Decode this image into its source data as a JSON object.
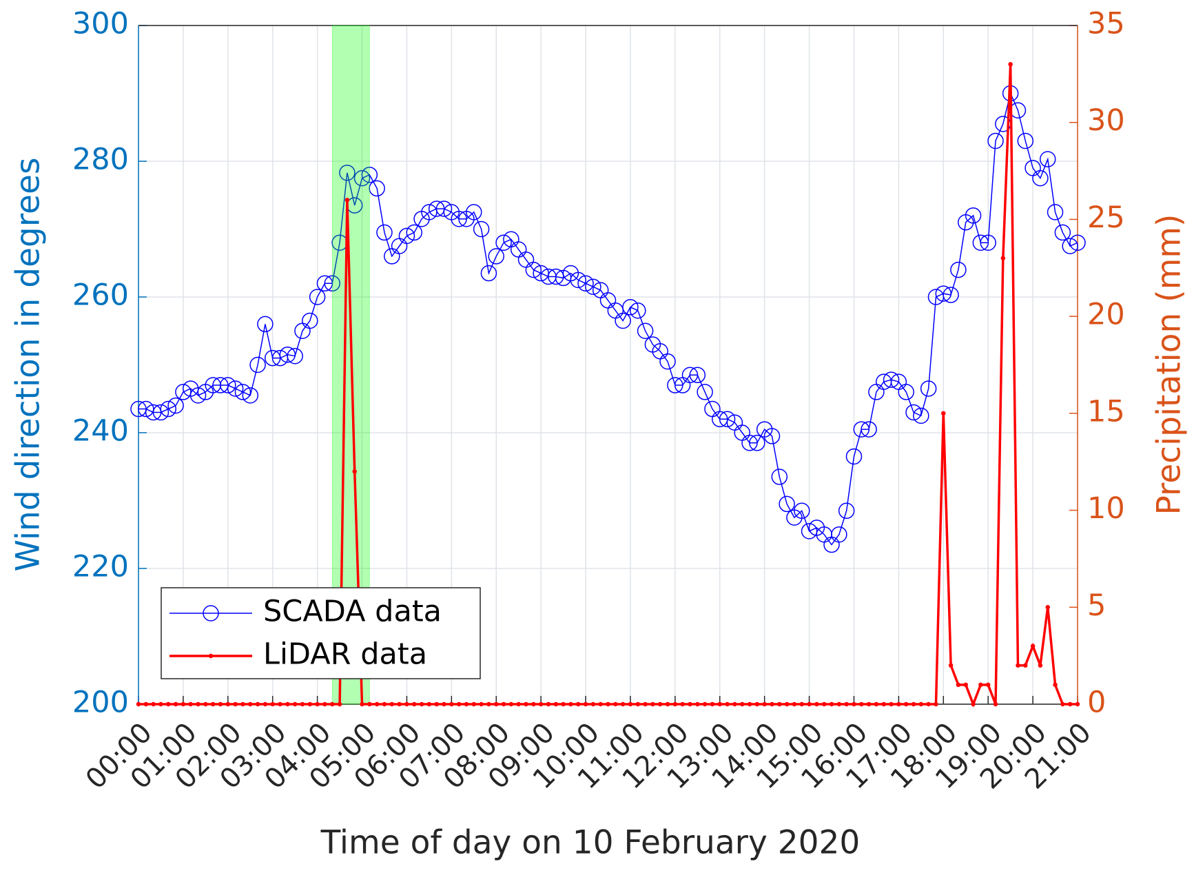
{
  "chart_data": {
    "type": "line",
    "xlabel": "Time of day on 10 February 2020",
    "ylabel": "Wind direction in degrees",
    "y2label": "Precipitation (mm)",
    "xlim": [
      0,
      1260
    ],
    "xticks": [
      {
        "value": 0,
        "label": "00:00"
      },
      {
        "value": 60,
        "label": "01:00"
      },
      {
        "value": 120,
        "label": "02:00"
      },
      {
        "value": 180,
        "label": "03:00"
      },
      {
        "value": 240,
        "label": "04:00"
      },
      {
        "value": 300,
        "label": "05:00"
      },
      {
        "value": 360,
        "label": "06:00"
      },
      {
        "value": 420,
        "label": "07:00"
      },
      {
        "value": 480,
        "label": "08:00"
      },
      {
        "value": 540,
        "label": "09:00"
      },
      {
        "value": 600,
        "label": "10:00"
      },
      {
        "value": 660,
        "label": "11:00"
      },
      {
        "value": 720,
        "label": "12:00"
      },
      {
        "value": 780,
        "label": "13:00"
      },
      {
        "value": 840,
        "label": "14:00"
      },
      {
        "value": 900,
        "label": "15:00"
      },
      {
        "value": 960,
        "label": "16:00"
      },
      {
        "value": 1020,
        "label": "17:00"
      },
      {
        "value": 1080,
        "label": "18:00"
      },
      {
        "value": 1140,
        "label": "19:00"
      },
      {
        "value": 1200,
        "label": "20:00"
      },
      {
        "value": 1260,
        "label": "21:00"
      }
    ],
    "ylim": [
      200,
      300
    ],
    "yticks": [
      200,
      220,
      240,
      260,
      280,
      300
    ],
    "y2lim": [
      0,
      35
    ],
    "y2ticks": [
      0,
      5,
      10,
      15,
      20,
      25,
      30,
      35
    ],
    "grid": true,
    "legend": "lower left",
    "ycolor": "#0072bd",
    "y2color": "#d95319",
    "shaded_span": [
      260,
      310
    ],
    "shaded_color": "#00ff00",
    "series": [
      {
        "name": "SCADA data",
        "color": "#0000ff",
        "marker": "circle",
        "x": [
          0,
          10,
          20,
          30,
          40,
          50,
          60,
          70,
          80,
          90,
          100,
          110,
          120,
          130,
          140,
          150,
          160,
          170,
          180,
          190,
          200,
          210,
          220,
          230,
          240,
          250,
          260,
          270,
          280,
          290,
          300,
          310,
          320,
          330,
          340,
          350,
          360,
          370,
          380,
          390,
          400,
          410,
          420,
          430,
          440,
          450,
          460,
          470,
          480,
          490,
          500,
          510,
          520,
          530,
          540,
          550,
          560,
          570,
          580,
          590,
          600,
          610,
          620,
          630,
          640,
          650,
          660,
          670,
          680,
          690,
          700,
          710,
          720,
          730,
          740,
          750,
          760,
          770,
          780,
          790,
          800,
          810,
          820,
          830,
          840,
          850,
          860,
          870,
          880,
          890,
          900,
          910,
          920,
          930,
          940,
          950,
          960,
          970,
          980,
          990,
          1000,
          1010,
          1020,
          1030,
          1040,
          1050,
          1060,
          1070,
          1080,
          1090,
          1100,
          1110,
          1120,
          1130,
          1140,
          1150,
          1160,
          1170,
          1180,
          1190,
          1200,
          1210,
          1220,
          1230,
          1240,
          1250,
          1260
        ],
        "values": [
          243.5,
          243.5,
          243,
          243,
          243.5,
          244,
          246,
          246.5,
          245.5,
          246,
          247,
          247,
          247,
          246.5,
          246,
          245.5,
          250,
          256,
          251,
          251,
          251.5,
          251.3,
          255,
          256.5,
          260,
          262,
          262,
          268,
          278.3,
          273.5,
          277.5,
          278,
          276,
          269.5,
          266,
          267.5,
          269,
          269.5,
          271.5,
          272.5,
          273,
          273,
          272.5,
          271.5,
          271.5,
          272.5,
          270,
          263.5,
          266,
          268,
          268.5,
          267,
          265.5,
          264,
          263.5,
          263,
          263,
          262.8,
          263.5,
          262.5,
          262,
          261.5,
          261,
          259.5,
          258,
          256.5,
          258.5,
          258,
          255,
          253,
          252,
          250.5,
          247,
          247,
          248.5,
          248.5,
          246,
          243.5,
          242,
          242,
          241.5,
          240,
          238.5,
          238.5,
          240.5,
          239.5,
          233.5,
          229.5,
          227.5,
          228.5,
          225.5,
          226,
          225,
          223.5,
          225,
          228.5,
          236.5,
          240.5,
          240.5,
          246,
          247.5,
          247.8,
          247.5,
          246,
          243,
          242.5,
          246.5,
          260,
          260.5,
          260.3,
          264,
          271,
          272,
          268,
          268,
          283,
          285.5,
          290,
          287.5,
          283,
          279,
          277.5,
          280.3,
          272.5,
          269.5,
          267.5,
          268
        ]
      },
      {
        "name": "LiDAR data",
        "color": "#ff0000",
        "marker": "dot",
        "axis": "y2",
        "x": [
          0,
          10,
          20,
          30,
          40,
          50,
          60,
          70,
          80,
          90,
          100,
          110,
          120,
          130,
          140,
          150,
          160,
          170,
          180,
          190,
          200,
          210,
          220,
          230,
          240,
          250,
          260,
          270,
          280,
          290,
          300,
          310,
          320,
          330,
          340,
          350,
          360,
          370,
          380,
          390,
          400,
          410,
          420,
          430,
          440,
          450,
          460,
          470,
          480,
          490,
          500,
          510,
          520,
          530,
          540,
          550,
          560,
          570,
          580,
          590,
          600,
          610,
          620,
          630,
          640,
          650,
          660,
          670,
          680,
          690,
          700,
          710,
          720,
          730,
          740,
          750,
          760,
          770,
          780,
          790,
          800,
          810,
          820,
          830,
          840,
          850,
          860,
          870,
          880,
          890,
          900,
          910,
          920,
          930,
          940,
          950,
          960,
          970,
          980,
          990,
          1000,
          1010,
          1020,
          1030,
          1040,
          1050,
          1060,
          1070,
          1080,
          1090,
          1100,
          1110,
          1120,
          1130,
          1140,
          1150,
          1160,
          1170,
          1180,
          1190,
          1200,
          1210,
          1220,
          1230,
          1240,
          1250,
          1260
        ],
        "values": [
          0,
          0,
          0,
          0,
          0,
          0,
          0,
          0,
          0,
          0,
          0,
          0,
          0,
          0,
          0,
          0,
          0,
          0,
          0,
          0,
          0,
          0,
          0,
          0,
          0,
          0,
          0,
          0,
          26,
          12,
          0,
          0,
          0,
          0,
          0,
          0,
          0,
          0,
          0,
          0,
          0,
          0,
          0,
          0,
          0,
          0,
          0,
          0,
          0,
          0,
          0,
          0,
          0,
          0,
          0,
          0,
          0,
          0,
          0,
          0,
          0,
          0,
          0,
          0,
          0,
          0,
          0,
          0,
          0,
          0,
          0,
          0,
          0,
          0,
          0,
          0,
          0,
          0,
          0,
          0,
          0,
          0,
          0,
          0,
          0,
          0,
          0,
          0,
          0,
          0,
          0,
          0,
          0,
          0,
          0,
          0,
          0,
          0,
          0,
          0,
          0,
          0,
          0,
          0,
          0,
          0,
          0,
          0,
          15,
          2,
          1,
          1,
          0,
          1,
          1,
          0,
          23,
          33,
          2,
          2,
          3,
          2,
          5,
          1,
          0,
          0,
          0
        ]
      }
    ]
  }
}
